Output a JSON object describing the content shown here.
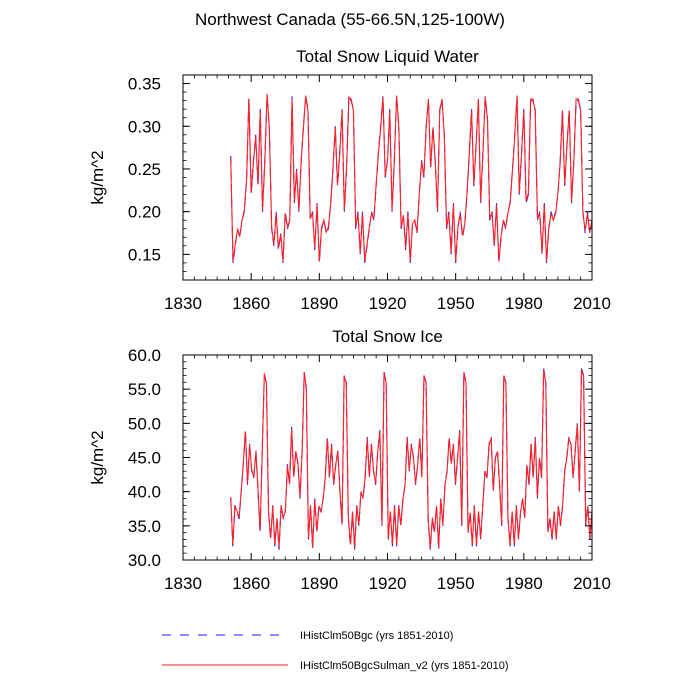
{
  "figure": {
    "suptitle": "Northwest Canada (55-66.5N,125-100W)"
  },
  "legend": {
    "entries": [
      {
        "label": "IHistClm50Bgc (yrs 1851-2010)",
        "color": "#1a1aff",
        "style": "dashed"
      },
      {
        "label": "IHistClm50BgcSulman_v2 (yrs 1851-2010)",
        "color": "#ff2020",
        "style": "solid"
      }
    ]
  },
  "chart_data": [
    {
      "type": "line",
      "title": "Total Snow Liquid Water",
      "xlabel": "",
      "ylabel": "kg/m^2",
      "xlim": [
        1830,
        2010
      ],
      "ylim": [
        0.12,
        0.36
      ],
      "xticks": [
        1830,
        1860,
        1890,
        1920,
        1950,
        1980,
        2010
      ],
      "xtick_labels": [
        "1830",
        "1860",
        "1890",
        "1920",
        "1950",
        "1980",
        "2010"
      ],
      "yticks": [
        0.15,
        0.2,
        0.25,
        0.3,
        0.35
      ],
      "ytick_labels": [
        "0.15",
        "0.20",
        "0.25",
        "0.30",
        "0.35"
      ],
      "x_start": 1851,
      "x_end": 2010,
      "series": [
        {
          "name": "IHistClm50Bgc (yrs 1851-2010)",
          "color": "#1a1aff",
          "style": "dashed",
          "values": [
            0.265,
            0.14,
            0.16,
            0.18,
            0.17,
            0.19,
            0.2,
            0.24,
            0.335,
            0.22,
            0.26,
            0.29,
            0.23,
            0.32,
            0.2,
            0.26,
            0.335,
            0.3,
            0.18,
            0.16,
            0.2,
            0.155,
            0.175,
            0.14,
            0.2,
            0.18,
            0.19,
            0.335,
            0.21,
            0.25,
            0.2,
            0.26,
            0.3,
            0.335,
            0.32,
            0.19,
            0.2,
            0.155,
            0.21,
            0.14,
            0.18,
            0.19,
            0.175,
            0.18,
            0.21,
            0.25,
            0.3,
            0.23,
            0.27,
            0.32,
            0.2,
            0.25,
            0.335,
            0.33,
            0.32,
            0.18,
            0.2,
            0.15,
            0.2,
            0.14,
            0.16,
            0.18,
            0.2,
            0.19,
            0.23,
            0.27,
            0.3,
            0.335,
            0.24,
            0.26,
            0.32,
            0.2,
            0.26,
            0.335,
            0.3,
            0.18,
            0.195,
            0.155,
            0.2,
            0.14,
            0.185,
            0.19,
            0.175,
            0.22,
            0.26,
            0.24,
            0.3,
            0.33,
            0.25,
            0.3,
            0.26,
            0.2,
            0.32,
            0.33,
            0.29,
            0.18,
            0.2,
            0.15,
            0.21,
            0.14,
            0.18,
            0.2,
            0.17,
            0.185,
            0.22,
            0.27,
            0.32,
            0.23,
            0.28,
            0.33,
            0.21,
            0.27,
            0.335,
            0.31,
            0.19,
            0.2,
            0.16,
            0.21,
            0.14,
            0.17,
            0.19,
            0.18,
            0.2,
            0.21,
            0.25,
            0.29,
            0.335,
            0.22,
            0.27,
            0.32,
            0.21,
            0.22,
            0.33,
            0.33,
            0.32,
            0.19,
            0.2,
            0.15,
            0.21,
            0.14,
            0.18,
            0.2,
            0.19,
            0.2,
            0.22,
            0.26,
            0.32,
            0.23,
            0.28,
            0.32,
            0.21,
            0.26,
            0.33,
            0.33,
            0.32,
            0.2,
            0.175,
            0.2,
            0.175,
            0.19
          ]
        },
        {
          "name": "IHistClm50BgcSulman_v2 (yrs 1851-2010)",
          "color": "#ff2020",
          "style": "solid",
          "values": [
            0.263,
            0.142,
            0.162,
            0.179,
            0.172,
            0.19,
            0.202,
            0.238,
            0.332,
            0.222,
            0.258,
            0.288,
            0.232,
            0.318,
            0.202,
            0.258,
            0.338,
            0.298,
            0.182,
            0.162,
            0.198,
            0.158,
            0.174,
            0.142,
            0.198,
            0.182,
            0.19,
            0.332,
            0.212,
            0.248,
            0.202,
            0.258,
            0.298,
            0.336,
            0.318,
            0.192,
            0.198,
            0.158,
            0.208,
            0.142,
            0.182,
            0.19,
            0.176,
            0.182,
            0.208,
            0.252,
            0.298,
            0.232,
            0.268,
            0.318,
            0.202,
            0.252,
            0.334,
            0.332,
            0.318,
            0.182,
            0.198,
            0.152,
            0.198,
            0.142,
            0.162,
            0.182,
            0.198,
            0.192,
            0.232,
            0.268,
            0.298,
            0.334,
            0.242,
            0.258,
            0.318,
            0.202,
            0.258,
            0.336,
            0.298,
            0.182,
            0.196,
            0.158,
            0.198,
            0.142,
            0.186,
            0.19,
            0.176,
            0.222,
            0.258,
            0.242,
            0.298,
            0.332,
            0.252,
            0.298,
            0.258,
            0.202,
            0.318,
            0.332,
            0.288,
            0.182,
            0.198,
            0.152,
            0.208,
            0.142,
            0.182,
            0.198,
            0.172,
            0.186,
            0.222,
            0.268,
            0.318,
            0.232,
            0.278,
            0.332,
            0.212,
            0.268,
            0.334,
            0.308,
            0.192,
            0.198,
            0.162,
            0.208,
            0.142,
            0.172,
            0.19,
            0.182,
            0.198,
            0.212,
            0.248,
            0.288,
            0.336,
            0.222,
            0.268,
            0.318,
            0.212,
            0.222,
            0.332,
            0.332,
            0.318,
            0.192,
            0.198,
            0.152,
            0.208,
            0.142,
            0.182,
            0.198,
            0.19,
            0.198,
            0.222,
            0.258,
            0.318,
            0.232,
            0.278,
            0.318,
            0.212,
            0.258,
            0.332,
            0.332,
            0.318,
            0.198,
            0.178,
            0.198,
            0.176,
            0.19
          ]
        }
      ]
    },
    {
      "type": "line",
      "title": "Total Snow Ice",
      "xlabel": "",
      "ylabel": "kg/m^2",
      "xlim": [
        1830,
        2010
      ],
      "ylim": [
        30,
        60
      ],
      "xticks": [
        1830,
        1860,
        1890,
        1920,
        1950,
        1980,
        2010
      ],
      "xtick_labels": [
        "1830",
        "1860",
        "1890",
        "1920",
        "1950",
        "1980",
        "2010"
      ],
      "yticks": [
        30,
        35,
        40,
        45,
        50,
        55,
        60
      ],
      "ytick_labels": [
        "30.0",
        "35.0",
        "40.0",
        "45.0",
        "50.0",
        "55.0",
        "60.0"
      ],
      "x_start": 1851,
      "x_end": 2010,
      "series": [
        {
          "name": "IHistClm50Bgc (yrs 1851-2010)",
          "color": "#1a1aff",
          "style": "dashed",
          "values": [
            39,
            32,
            38,
            37,
            36,
            40,
            44,
            49,
            41,
            47,
            43,
            42,
            46,
            40,
            34,
            46,
            57,
            56,
            37,
            33,
            38,
            32,
            36,
            31.5,
            38,
            36,
            37,
            44,
            41,
            49.5,
            42,
            46,
            44,
            39,
            46,
            57.5,
            55,
            33,
            38,
            31.5,
            39,
            34,
            38,
            37,
            39,
            42,
            48,
            42,
            47,
            41,
            44,
            46,
            40,
            35,
            57,
            56,
            36,
            32,
            37,
            31.5,
            38,
            35,
            40,
            39,
            42,
            48,
            42,
            47,
            43,
            41,
            46,
            49,
            35,
            57.5,
            56,
            33,
            37,
            32,
            38,
            32,
            38,
            35,
            39,
            41,
            48,
            43,
            47,
            45,
            41,
            44,
            48,
            42,
            57,
            56,
            36,
            31.5,
            36,
            34,
            38,
            31.5,
            39,
            35,
            41,
            43,
            48,
            44,
            47,
            41,
            45,
            49,
            35,
            57.5,
            56,
            34,
            37,
            32,
            38,
            32,
            37,
            33,
            38,
            43,
            42,
            47,
            48,
            40,
            45,
            46,
            41,
            35,
            57,
            56,
            36,
            32,
            37,
            32,
            38,
            33,
            37,
            39,
            36,
            44,
            41,
            47,
            42,
            48,
            39,
            45,
            42,
            58,
            56,
            34,
            36,
            33,
            37,
            33,
            38,
            35,
            38,
            43,
            45,
            48,
            47,
            42,
            46,
            50,
            40,
            58,
            57,
            35,
            38,
            33,
            37
          ]
        },
        {
          "name": "IHistClm50BgcSulman_v2 (yrs 1851-2010)",
          "color": "#ff2020",
          "style": "solid",
          "values": [
            39.2,
            32.3,
            37.8,
            37.2,
            36.2,
            40.1,
            44.2,
            48.8,
            41.2,
            46.8,
            43.2,
            42.1,
            45.8,
            40.2,
            34.3,
            45.8,
            57.3,
            55.8,
            37.2,
            33.2,
            37.9,
            32.3,
            36.1,
            31.8,
            37.9,
            36.2,
            37.1,
            43.8,
            41.1,
            49.2,
            42.2,
            45.9,
            44.1,
            39.2,
            45.9,
            57.4,
            55.2,
            33.2,
            37.9,
            31.8,
            38.8,
            34.2,
            37.9,
            37.1,
            38.9,
            42.1,
            47.8,
            42.2,
            46.8,
            41.2,
            43.9,
            45.9,
            40.1,
            35.2,
            56.9,
            55.9,
            36.2,
            32.3,
            37.1,
            31.8,
            37.9,
            35.2,
            39.9,
            39.1,
            42.1,
            47.8,
            42.2,
            46.9,
            43.1,
            41.2,
            45.9,
            48.8,
            35.2,
            57.4,
            55.9,
            33.2,
            37.1,
            32.3,
            37.9,
            32.2,
            37.9,
            35.1,
            38.9,
            41.1,
            47.9,
            43.1,
            46.8,
            44.9,
            41.2,
            43.9,
            47.8,
            42.1,
            56.9,
            55.9,
            36.1,
            31.8,
            36.2,
            34.1,
            37.9,
            31.8,
            38.9,
            35.1,
            40.9,
            43.1,
            47.8,
            44.1,
            46.9,
            41.2,
            44.9,
            48.8,
            35.2,
            57.4,
            55.9,
            34.1,
            36.9,
            32.2,
            37.9,
            32.2,
            37.1,
            33.2,
            37.9,
            42.9,
            42.1,
            46.9,
            47.8,
            40.2,
            44.9,
            45.9,
            41.1,
            35.2,
            56.9,
            55.9,
            36.1,
            32.2,
            37.1,
            32.3,
            37.9,
            33.1,
            37.1,
            38.9,
            36.2,
            43.9,
            41.1,
            46.9,
            42.1,
            47.8,
            39.2,
            44.9,
            42.1,
            57.8,
            55.9,
            34.2,
            36.1,
            33.2,
            37.1,
            33.1,
            37.9,
            35.1,
            37.9,
            42.9,
            44.9,
            47.8,
            46.9,
            42.1,
            45.9,
            49.8,
            40.1,
            57.8,
            56.9,
            35.2,
            37.9,
            33.2,
            37.1
          ]
        }
      ]
    }
  ]
}
